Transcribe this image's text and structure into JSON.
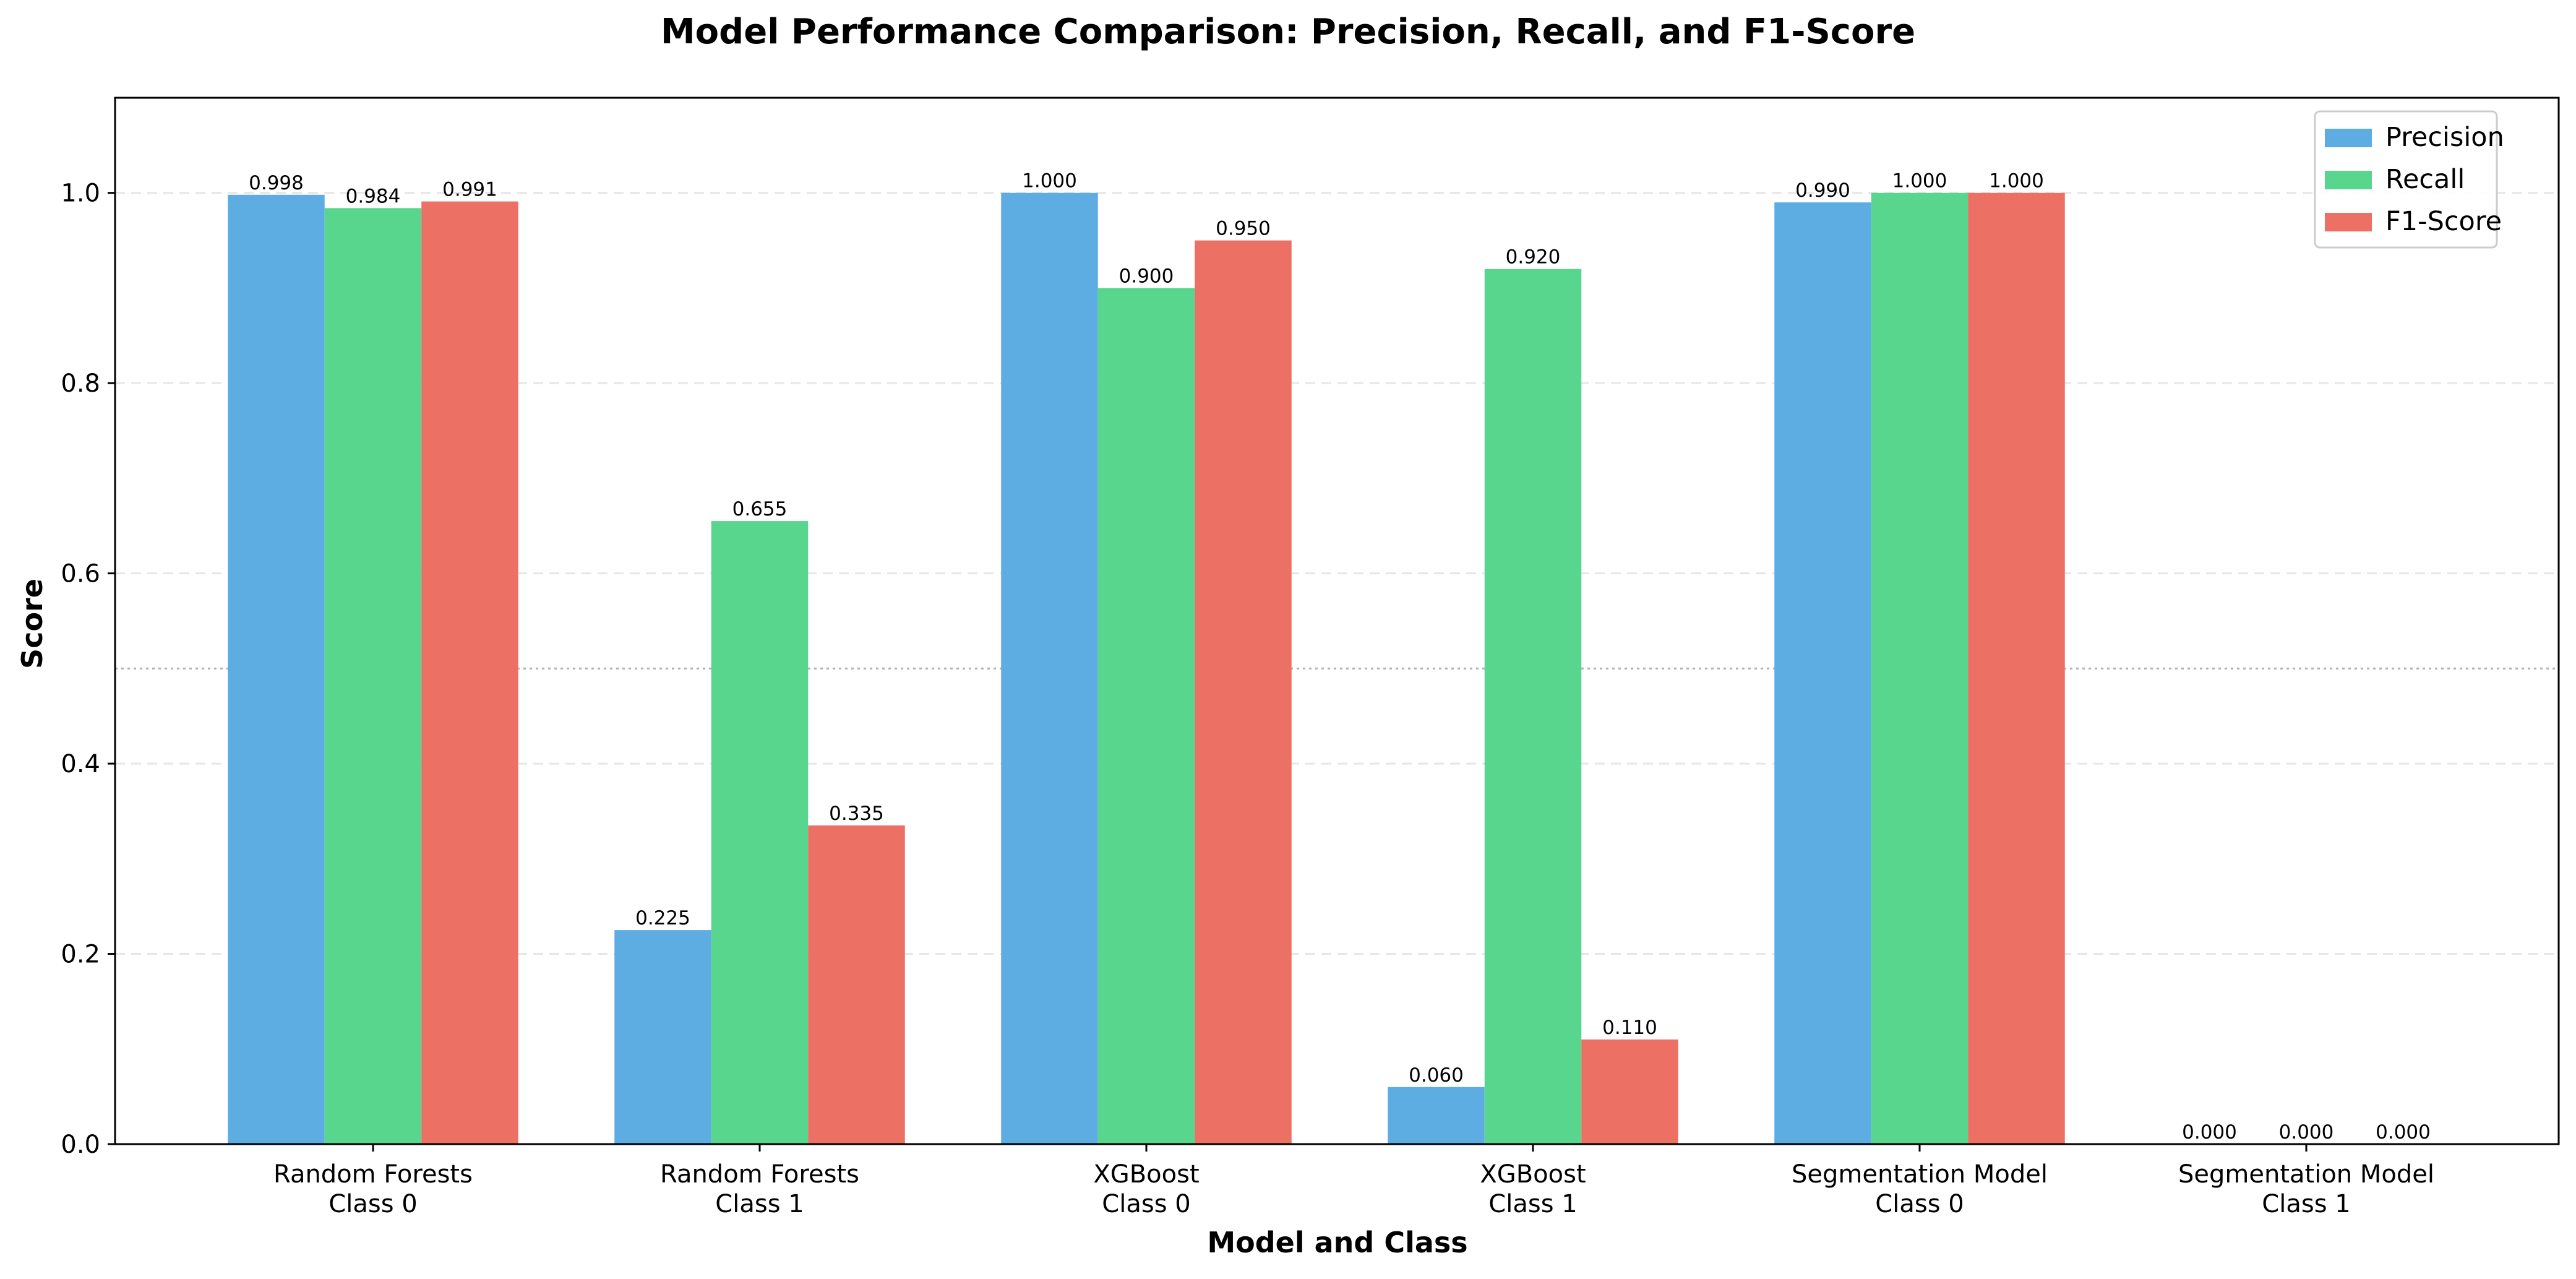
{
  "chart_data": {
    "type": "bar",
    "title": "Model Performance Comparison: Precision, Recall, and F1-Score",
    "xlabel": "Model and Class",
    "ylabel": "Score",
    "ylim": [
      0,
      1.1
    ],
    "yticks": [
      0.0,
      0.2,
      0.4,
      0.6,
      0.8,
      1.0
    ],
    "ytick_labels": [
      "0.0",
      "0.2",
      "0.4",
      "0.6",
      "0.8",
      "1.0"
    ],
    "categories": [
      [
        "Random Forests",
        "Class 0"
      ],
      [
        "Random Forests",
        "Class 1"
      ],
      [
        "XGBoost",
        "Class 0"
      ],
      [
        "XGBoost",
        "Class 1"
      ],
      [
        "Segmentation Model",
        "Class 0"
      ],
      [
        "Segmentation Model",
        "Class 1"
      ]
    ],
    "series": [
      {
        "name": "Precision",
        "color": "#5DADE2",
        "values": [
          0.998,
          0.225,
          1.0,
          0.06,
          0.99,
          0.0
        ],
        "labels": [
          "0.998",
          "0.225",
          "1.000",
          "0.060",
          "0.990",
          "0.000"
        ]
      },
      {
        "name": "Recall",
        "color": "#58D68D",
        "values": [
          0.984,
          0.655,
          0.9,
          0.92,
          1.0,
          0.0
        ],
        "labels": [
          "0.984",
          "0.655",
          "0.900",
          "0.920",
          "1.000",
          "0.000"
        ]
      },
      {
        "name": "F1-Score",
        "color": "#EC7063",
        "values": [
          0.991,
          0.335,
          0.95,
          0.11,
          1.0,
          0.0
        ],
        "labels": [
          "0.991",
          "0.335",
          "0.950",
          "0.110",
          "1.000",
          "0.000"
        ]
      }
    ],
    "reference_line": {
      "y": 0.5,
      "style": "dotted",
      "color": "#b0b0b0"
    },
    "grid": {
      "y": true,
      "x": false,
      "style": "dashed",
      "color": "#e6e6e6"
    },
    "legend": {
      "position": "top-right"
    }
  }
}
